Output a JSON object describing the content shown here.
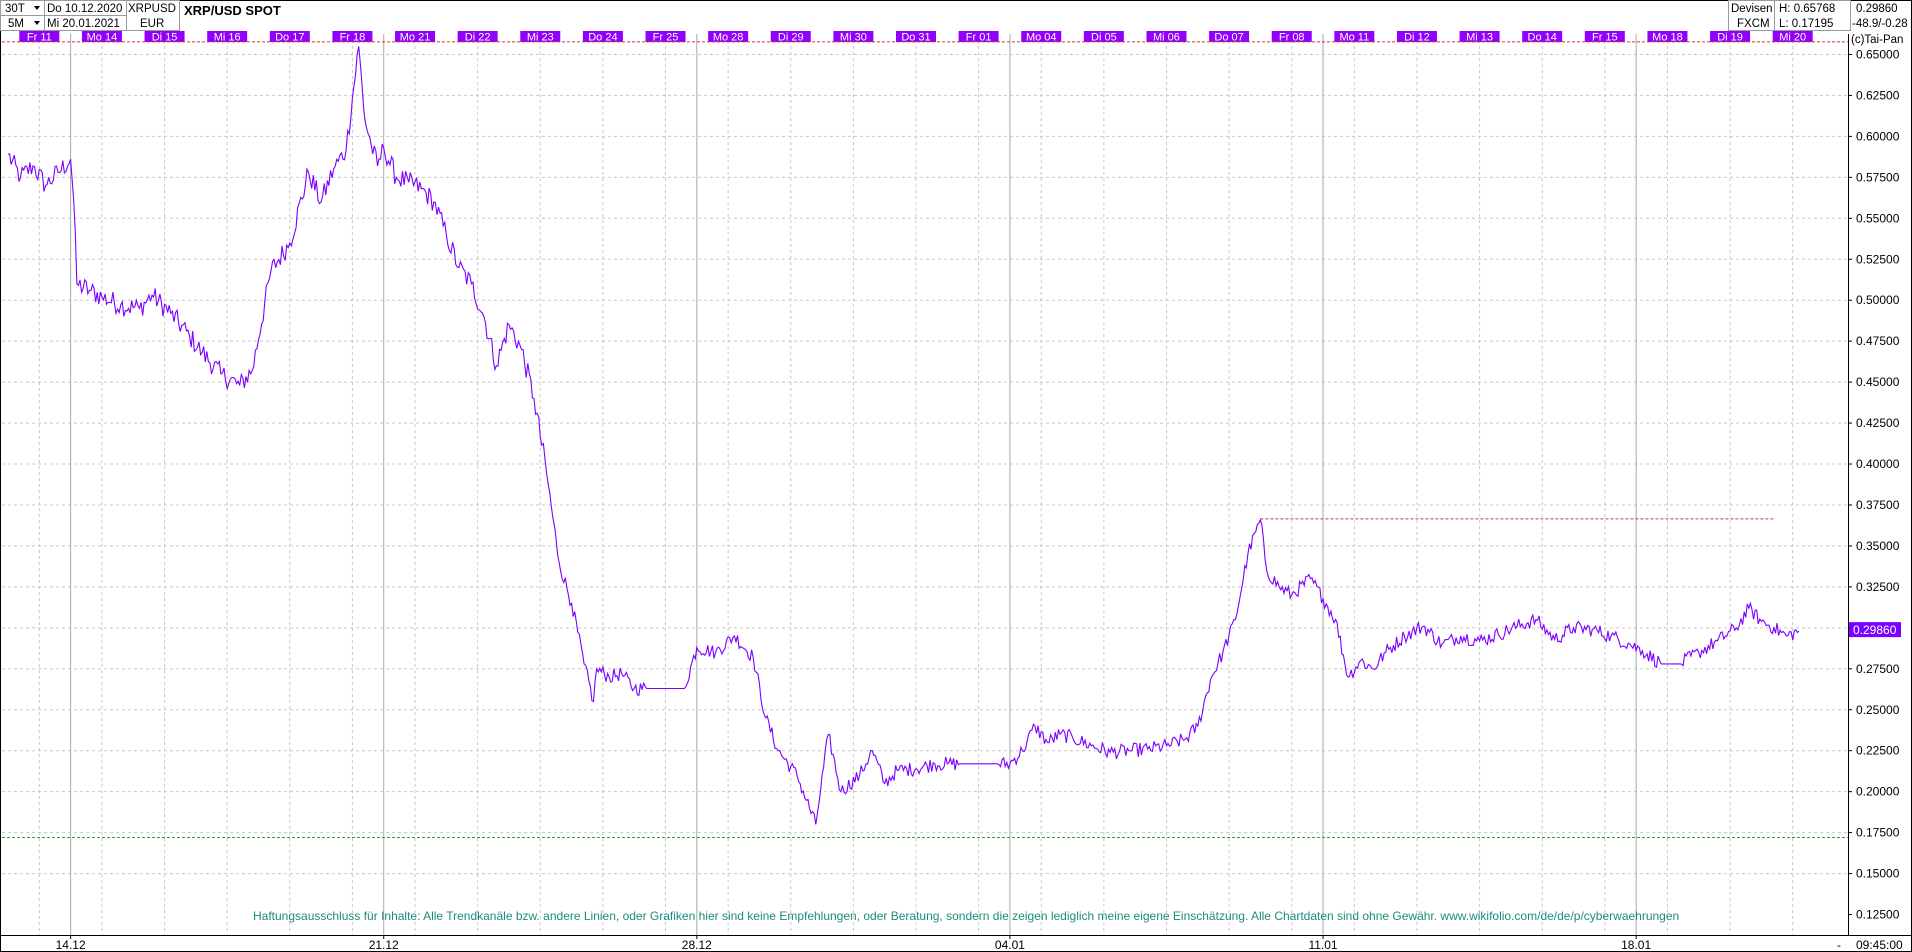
{
  "header": {
    "interval_primary": "30T",
    "interval_secondary": "5M",
    "date_from": "Do 10.12.2020",
    "date_to": "Mi 20.01.2021",
    "symbol": "XRPUSD",
    "currency": "EUR",
    "title": "XRP/USD SPOT",
    "market": "Devisen",
    "source": "FXCM",
    "high_label": "H: 0.65768",
    "low_label": "L: 0.17195",
    "last_value": "0.29860",
    "change": "-48.9/-0.28",
    "copyright": "(c)Tai-Pan"
  },
  "day_labels": [
    "Fr 11",
    "Mo 14",
    "Di 15",
    "Mi 16",
    "Do 17",
    "Fr 18",
    "Mo 21",
    "Di 22",
    "Mi 23",
    "Do 24",
    "Fr 25",
    "Mo 28",
    "Di 29",
    "Mi 30",
    "Do 31",
    "Fr 01",
    "Mo 04",
    "Di 05",
    "Mi 06",
    "Do 07",
    "Fr 08",
    "Mo 11",
    "Di 12",
    "Mi 13",
    "Do 14",
    "Fr 15",
    "Mo 18",
    "Di 19",
    "Mi 20"
  ],
  "colors": {
    "line": "#7a00ff",
    "day_label_bg": "#9000ff",
    "grid": "#c8c8c8",
    "high_line": "#e03030",
    "low_line": "#30a030",
    "disclaimer": "#1e8c7a"
  },
  "disclaimer": "Haftungsausschluss für Inhalte: Alle Trendkanäle bzw. andere Linien, oder Grafiken hier sind keine Empfehlungen, oder Beratung, sondern die zeigen lediglich meine eigene Einschätzung. Alle Chartdaten sind ohne Gewähr.  www.wikifolio.com/de/de/p/cyberwaehrungen",
  "footer": {
    "time_label": "09:45:00",
    "dash": "-"
  },
  "chart_data": {
    "type": "line",
    "title": "XRP/USD SPOT",
    "ylim": [
      0.1125,
      0.6625
    ],
    "yticks": [
      0.15,
      0.175,
      0.2,
      0.225,
      0.25,
      0.275,
      0.3,
      0.325,
      0.35,
      0.375,
      0.4,
      0.425,
      0.45,
      0.475,
      0.5,
      0.525,
      0.55,
      0.575,
      0.6,
      0.625,
      0.65
    ],
    "ytick_labels": [
      "0.15000",
      "0.17500",
      "0.20000",
      "0.22500",
      "0.25000",
      "0.27500",
      "0.30000",
      "0.32500",
      "0.35000",
      "0.37500",
      "0.40000",
      "0.42500",
      "0.45000",
      "0.47500",
      "0.50000",
      "0.52500",
      "0.55000",
      "0.57500",
      "0.60000",
      "0.62500",
      "0.65000"
    ],
    "ylim_extra_tick_label": "0.12500",
    "xlim": [
      0,
      29
    ],
    "xticks": [
      1,
      6,
      11,
      16,
      21,
      26
    ],
    "xtick_labels": [
      "14.12",
      "21.12",
      "28.12",
      "04.01",
      "11.01",
      "18.01"
    ],
    "grid": true,
    "high_level": 0.6577,
    "low_level": 0.172,
    "recent_high_level": 0.3665,
    "recent_high_x": [
      20.0,
      28.2
    ],
    "last_value": 0.2986,
    "series": [
      {
        "x": [
          0.0,
          0.2,
          0.4,
          0.6,
          0.8,
          1.0,
          1.05,
          1.1,
          1.3,
          1.5,
          1.8,
          2.1,
          2.3,
          2.6,
          2.9,
          3.1,
          3.4,
          3.7,
          3.9,
          4.2,
          4.5,
          4.8,
          5.0,
          5.2,
          5.4,
          5.6,
          5.7,
          5.8,
          5.9,
          6.0,
          6.2,
          6.4,
          6.6,
          6.8,
          7.0,
          7.2,
          7.4,
          7.6,
          7.8,
          8.0,
          8.2,
          8.4,
          8.6,
          8.8,
          9.0,
          9.2,
          9.35,
          9.4,
          9.6,
          9.8,
          10.0,
          10.2,
          10.5,
          10.8,
          11.0,
          11.3,
          11.6,
          11.9,
          12.1,
          12.3,
          12.6,
          12.9,
          13.1,
          13.3,
          13.6,
          13.8,
          14.0,
          14.2,
          14.5,
          14.8,
          15.0,
          15.2,
          15.5,
          15.8,
          16.0,
          16.2,
          16.4,
          16.6,
          16.8,
          17.0,
          17.3,
          17.6,
          17.9,
          18.2,
          18.5,
          18.8,
          19.0,
          19.2,
          19.4,
          19.6,
          19.8,
          20.0,
          20.1,
          20.3,
          20.5,
          20.8,
          21.0,
          21.2,
          21.4,
          21.6,
          21.8,
          22.0,
          22.3,
          22.6,
          22.9,
          23.2,
          23.5,
          23.8,
          24.1,
          24.4,
          24.7,
          25.0,
          25.3,
          25.6,
          25.9,
          26.1,
          26.4,
          26.7,
          27.0,
          27.3,
          27.6,
          27.8,
          28.0,
          28.2,
          28.4,
          28.6
        ],
        "y": [
          0.589,
          0.575,
          0.582,
          0.57,
          0.578,
          0.586,
          0.56,
          0.51,
          0.506,
          0.502,
          0.497,
          0.495,
          0.503,
          0.492,
          0.478,
          0.468,
          0.455,
          0.448,
          0.457,
          0.518,
          0.535,
          0.578,
          0.56,
          0.58,
          0.592,
          0.655,
          0.61,
          0.595,
          0.582,
          0.593,
          0.575,
          0.572,
          0.568,
          0.56,
          0.54,
          0.52,
          0.51,
          0.49,
          0.46,
          0.485,
          0.47,
          0.44,
          0.395,
          0.34,
          0.315,
          0.278,
          0.255,
          0.275,
          0.27,
          0.272,
          0.263,
          0.263,
          0.263,
          0.263,
          0.288,
          0.285,
          0.295,
          0.282,
          0.245,
          0.225,
          0.21,
          0.18,
          0.235,
          0.2,
          0.21,
          0.225,
          0.205,
          0.213,
          0.214,
          0.217,
          0.217,
          0.217,
          0.217,
          0.217,
          0.217,
          0.225,
          0.24,
          0.23,
          0.235,
          0.233,
          0.228,
          0.224,
          0.225,
          0.226,
          0.228,
          0.232,
          0.24,
          0.268,
          0.285,
          0.305,
          0.345,
          0.366,
          0.335,
          0.325,
          0.32,
          0.33,
          0.318,
          0.305,
          0.27,
          0.28,
          0.275,
          0.285,
          0.295,
          0.301,
          0.29,
          0.295,
          0.292,
          0.296,
          0.301,
          0.305,
          0.293,
          0.3,
          0.299,
          0.295,
          0.29,
          0.286,
          0.278,
          0.278,
          0.285,
          0.292,
          0.3,
          0.312,
          0.304,
          0.3,
          0.295,
          0.298
        ]
      }
    ]
  }
}
